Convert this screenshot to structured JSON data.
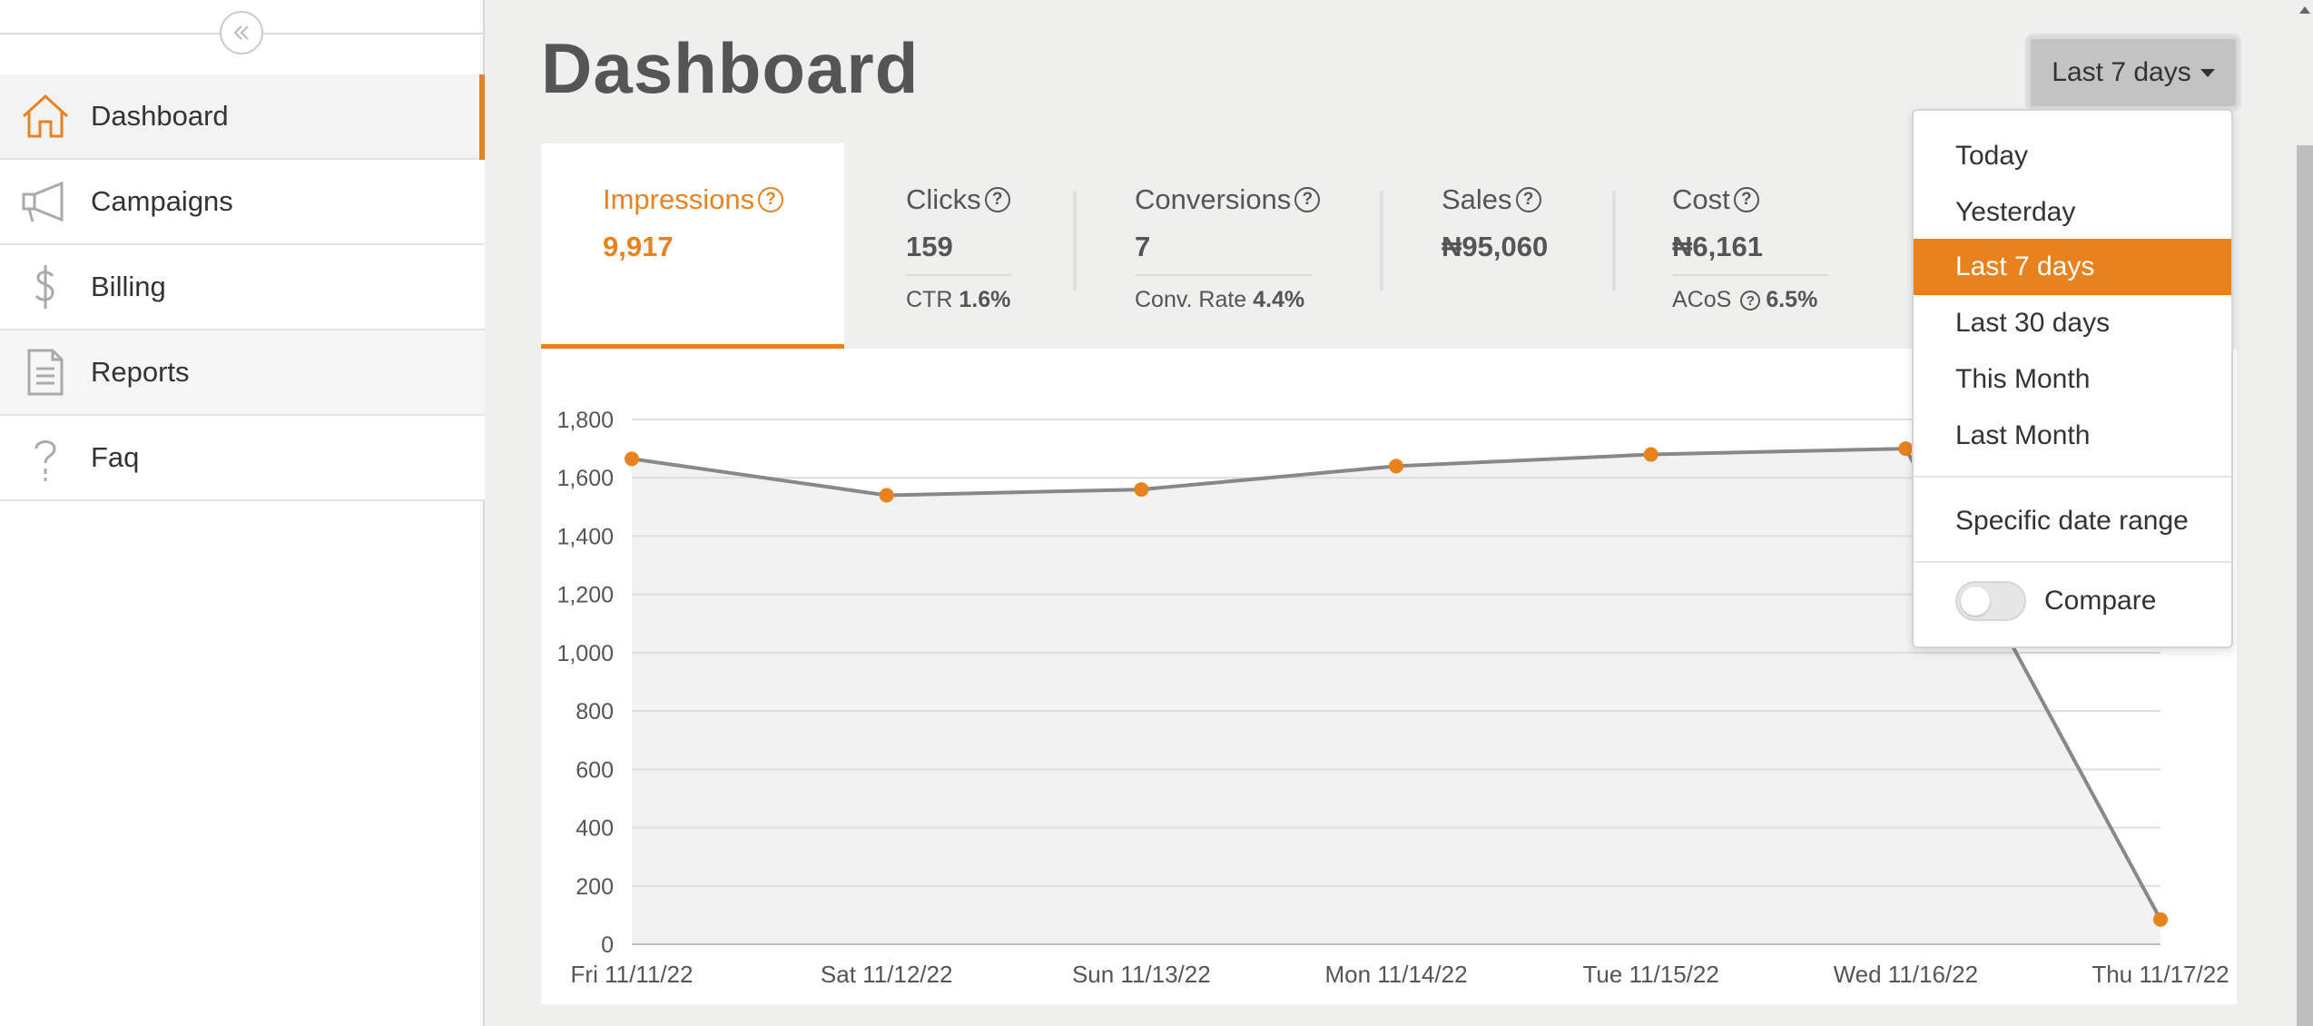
{
  "sidebar": {
    "items": [
      {
        "label": "Dashboard",
        "icon": "home-icon"
      },
      {
        "label": "Campaigns",
        "icon": "megaphone-icon"
      },
      {
        "label": "Billing",
        "icon": "dollar-icon"
      },
      {
        "label": "Reports",
        "icon": "document-icon"
      },
      {
        "label": "Faq",
        "icon": "question-icon"
      }
    ]
  },
  "header": {
    "title": "Dashboard",
    "range_button": "Last 7 days"
  },
  "metrics": {
    "impressions": {
      "label": "Impressions",
      "value": "9,917"
    },
    "clicks": {
      "label": "Clicks",
      "value": "159",
      "sub_label": "CTR",
      "sub_value": "1.6%"
    },
    "conversions": {
      "label": "Conversions",
      "value": "7",
      "sub_label": "Conv. Rate",
      "sub_value": "4.4%"
    },
    "sales": {
      "label": "Sales",
      "value": "₦95,060"
    },
    "cost": {
      "label": "Cost",
      "value": "₦6,161",
      "sub_label": "ACoS",
      "sub_value": "6.5%"
    }
  },
  "dropdown": {
    "options": [
      "Today",
      "Yesterday",
      "Last 7 days",
      "Last 30 days",
      "This Month",
      "Last Month"
    ],
    "selected": "Last 7 days",
    "specific": "Specific date range",
    "compare": "Compare",
    "compare_on": false
  },
  "colors": {
    "accent": "#e8821e",
    "line": "#888888"
  },
  "chart_data": {
    "type": "line",
    "categories": [
      "Fri 11/11/22",
      "Sat 11/12/22",
      "Sun 11/13/22",
      "Mon 11/14/22",
      "Tue 11/15/22",
      "Wed 11/16/22",
      "Thu 11/17/22"
    ],
    "values": [
      1665,
      1540,
      1560,
      1640,
      1680,
      1700,
      85
    ],
    "ylim": [
      0,
      1800
    ],
    "yticks": [
      0,
      200,
      400,
      600,
      800,
      1000,
      1200,
      1400,
      1600,
      1800
    ],
    "ytick_labels": [
      "0",
      "200",
      "400",
      "600",
      "800",
      "1,000",
      "1,200",
      "1,400",
      "1,600",
      "1,800"
    ],
    "grid": true,
    "area_fill": true
  }
}
